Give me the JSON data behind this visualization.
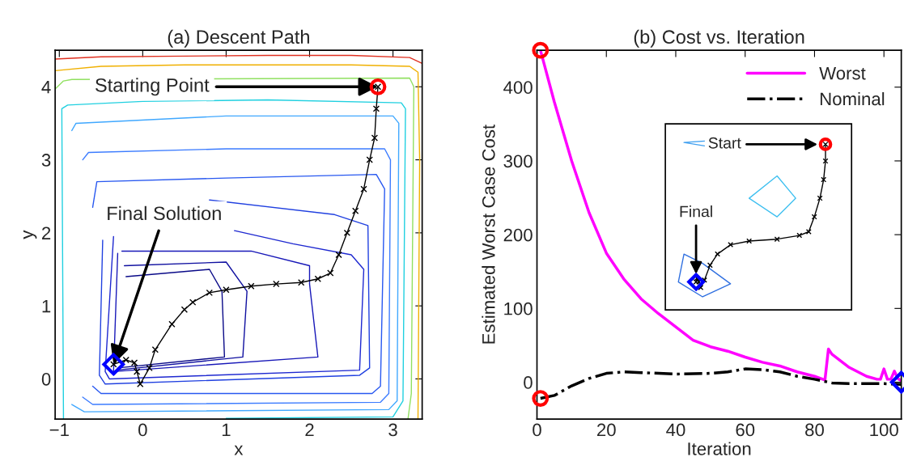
{
  "chart_data": [
    {
      "type": "line",
      "title": "(a) Descent Path",
      "xlabel": "x",
      "ylabel": "y",
      "xlim": [
        -1.05,
        3.35
      ],
      "ylim": [
        -0.55,
        4.5
      ],
      "xticks": [
        {
          "value": -1,
          "label": "−1"
        },
        0,
        1,
        2,
        3
      ],
      "yticks": [
        0,
        1,
        2,
        3,
        4
      ],
      "grid": false,
      "legend": false,
      "annotations": [
        {
          "text": "Starting Point",
          "x": 2.82,
          "y": 4.0
        },
        {
          "text": "Final Solution",
          "x": -0.35,
          "y": 0.2
        }
      ],
      "series": [
        {
          "color": "#e03020",
          "x": [
            -1.05,
            -0.5,
            0.5,
            1.5,
            2.5,
            3.2,
            3.35
          ],
          "values": [
            4.38,
            4.41,
            4.42,
            4.43,
            4.43,
            4.4,
            4.32
          ]
        },
        {
          "color": "#f0b000",
          "x": [
            -1.05,
            -0.5,
            0.5,
            1.5,
            2.5,
            3.2,
            3.3,
            3.32,
            3.3
          ],
          "values": [
            4.22,
            4.28,
            4.3,
            4.3,
            4.3,
            4.28,
            4.2,
            3.0,
            -0.55
          ]
        },
        {
          "color": "#90e060",
          "x": [
            -1.05,
            -0.95,
            -0.85,
            3.2,
            3.25,
            3.22,
            3.18
          ],
          "values": [
            3.97,
            4.08,
            4.1,
            4.12,
            4.0,
            -0.2,
            -0.55
          ]
        },
        {
          "color": "#20d0e0",
          "x": [
            -0.95,
            -0.97,
            -0.9,
            0,
            1.5,
            3.1,
            3.15,
            3.12,
            3.0,
            1
          ],
          "values": [
            -0.55,
            3.7,
            3.75,
            3.8,
            3.82,
            3.78,
            3.7,
            -0.3,
            -0.52,
            -0.54
          ]
        },
        {
          "color": "#40a8ff",
          "x": [
            -0.85,
            -0.8,
            1,
            3.0,
            3.07,
            3.05,
            2.95,
            -0.7,
            -0.85
          ],
          "values": [
            3.4,
            3.5,
            3.6,
            3.6,
            3.5,
            -0.3,
            -0.42,
            -0.45,
            -0.35
          ]
        },
        {
          "color": "#3c7cff",
          "x": [
            -0.72,
            -0.65,
            1,
            2.9,
            2.97,
            2.95,
            2.85,
            -0.6,
            -0.72
          ],
          "values": [
            3.0,
            3.1,
            3.15,
            3.15,
            3.0,
            -0.2,
            -0.32,
            -0.35,
            -0.25
          ]
        },
        {
          "color": "#2858f0",
          "x": [
            -0.6,
            -0.55,
            1,
            2.8,
            2.9,
            2.85,
            2.75,
            -0.5,
            -0.6
          ],
          "values": [
            2.35,
            2.7,
            2.75,
            2.8,
            2.6,
            -0.1,
            -0.2,
            -0.2,
            -0.1
          ]
        },
        {
          "color": "#2040e0",
          "x": [
            0.8,
            2.3,
            2.7,
            2.72,
            2.6,
            -0.45,
            -0.52,
            -0.48
          ],
          "values": [
            2.45,
            2.25,
            2.1,
            0.15,
            0.05,
            -0.07,
            0.05,
            1.9
          ]
        },
        {
          "color": "#1e28d0",
          "x": [
            1.1,
            1.8,
            2.5,
            2.65,
            2.6,
            -0.4,
            -0.45,
            -0.35
          ],
          "values": [
            2.03,
            1.85,
            1.7,
            1.5,
            0.12,
            0.0,
            0.1,
            1.95
          ]
        },
        {
          "color": "#1818b8",
          "x": [
            -0.25,
            1.3,
            2.0,
            2.0,
            2.1,
            -0.35,
            -0.3
          ],
          "values": [
            1.75,
            1.75,
            1.55,
            1.3,
            0.3,
            0.1,
            1.72
          ]
        },
        {
          "color": "#1010a0",
          "x": [
            -0.22,
            1.0,
            1.25,
            1.2,
            -0.32
          ],
          "values": [
            1.55,
            1.6,
            1.2,
            0.3,
            0.12
          ]
        },
        {
          "color": "#0a0a88",
          "x": [
            -0.2,
            0.8,
            0.95,
            0.98,
            -0.3
          ],
          "values": [
            1.4,
            1.5,
            1.2,
            0.3,
            0.15
          ]
        },
        {
          "color": "#000000",
          "marker": "cross",
          "x": [
            2.82,
            2.8,
            2.78,
            2.72,
            2.65,
            2.55,
            2.45,
            2.35,
            2.25,
            2.1,
            1.9,
            1.6,
            1.3,
            1.0,
            0.8,
            0.6,
            0.5,
            0.35,
            0.15,
            0.08,
            -0.03,
            -0.07,
            -0.1,
            -0.2,
            -0.35
          ],
          "values": [
            4.0,
            3.7,
            3.3,
            3.0,
            2.6,
            2.3,
            2.0,
            1.7,
            1.45,
            1.37,
            1.32,
            1.3,
            1.27,
            1.22,
            1.18,
            1.05,
            0.95,
            0.75,
            0.4,
            0.15,
            -0.07,
            0.1,
            0.22,
            0.26,
            0.2
          ]
        },
        {
          "type": "scatter",
          "color": "#ff0000",
          "marker": "circle",
          "x": [
            2.82
          ],
          "values": [
            4.0
          ]
        },
        {
          "type": "scatter",
          "color": "#0000ff",
          "marker": "diamond",
          "x": [
            -0.35
          ],
          "values": [
            0.2
          ]
        }
      ]
    },
    {
      "type": "line",
      "title": "(b) Cost vs. Iteration",
      "xlabel": "Iteration",
      "ylabel": "Estimated Worst Case Cost",
      "xlim": [
        0,
        105
      ],
      "ylim": [
        -50,
        450
      ],
      "xticks": [
        0,
        20,
        40,
        60,
        80,
        100
      ],
      "yticks": [
        0,
        100,
        200,
        300,
        400
      ],
      "grid": false,
      "legend": "top right",
      "annotations": [
        "Start",
        "Final"
      ],
      "series": [
        {
          "name": "Worst",
          "color": "#ff00ff",
          "x": [
            1,
            5,
            10,
            15,
            20,
            25,
            30,
            35,
            40,
            45,
            50,
            55,
            60,
            65,
            70,
            75,
            80,
            83,
            84,
            85,
            90,
            95,
            98,
            99,
            100,
            101,
            102,
            103,
            104,
            105
          ],
          "values": [
            450,
            380,
            300,
            230,
            175,
            140,
            113,
            93,
            75,
            57,
            48,
            42,
            34,
            27,
            22,
            14,
            8,
            3,
            45,
            38,
            20,
            8,
            4,
            4,
            18,
            4,
            4,
            15,
            5,
            2
          ]
        },
        {
          "name": "Nominal",
          "color": "#000000",
          "line_style": "dashdot",
          "x": [
            1,
            5,
            10,
            15,
            20,
            25,
            30,
            40,
            50,
            55,
            60,
            65,
            70,
            75,
            80,
            85,
            90,
            95,
            100,
            105
          ],
          "values": [
            -22,
            -18,
            -5,
            5,
            12,
            14,
            13,
            11,
            12,
            14,
            18,
            17,
            14,
            8,
            4,
            -1,
            -2,
            -2,
            -2,
            -3
          ]
        },
        {
          "type": "scatter",
          "color": "#ff0000",
          "marker": "circle",
          "x": [
            1,
            1
          ],
          "values": [
            450,
            -22
          ]
        },
        {
          "type": "scatter",
          "color": "#0000ff",
          "marker": "diamond",
          "x": [
            105
          ],
          "values": [
            0
          ]
        }
      ]
    }
  ]
}
